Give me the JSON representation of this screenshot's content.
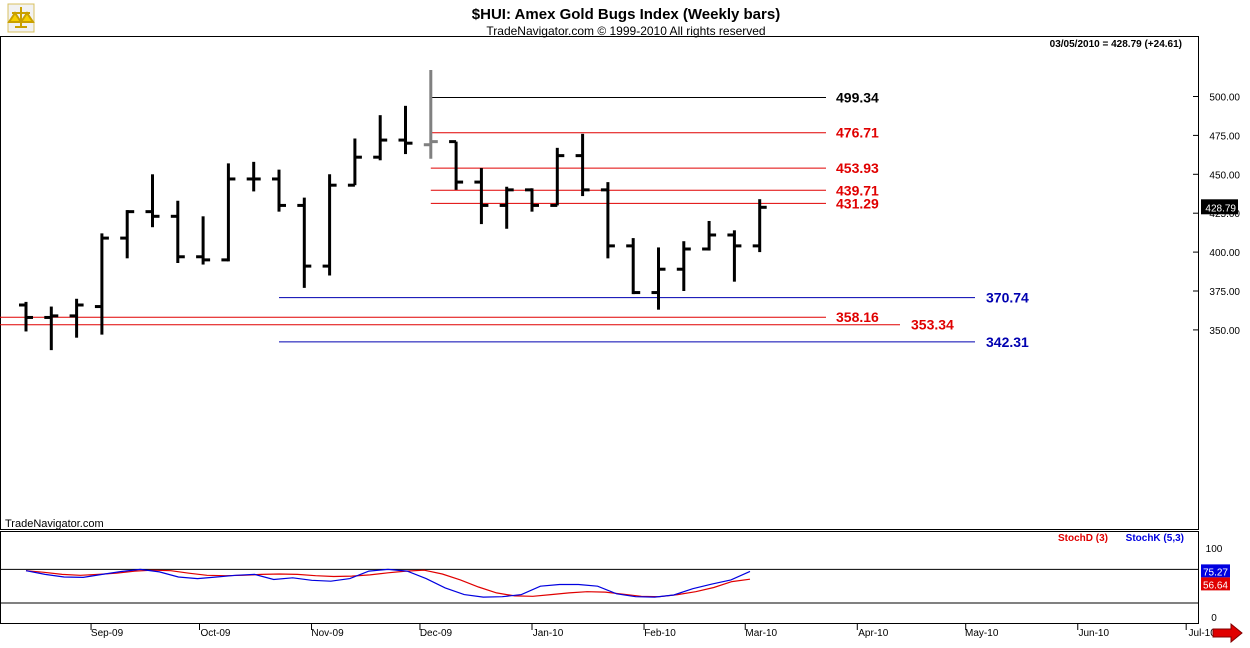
{
  "header": {
    "title": "$HUI:  Amex Gold Bugs Index  (Weekly bars)",
    "subtitle": "TradeNavigator.com © 1999-2010 All rights reserved",
    "last_quote": "03/05/2010 = 428.79 (+24.61)",
    "watermark": "TradeNavigator.com"
  },
  "colors": {
    "bars": "#000000",
    "current_bar": "#808080",
    "red_level": "#e00000",
    "blue_level": "#0000b0",
    "black_level": "#000000",
    "stoch_d": "#e00000",
    "stoch_k": "#0000e0"
  },
  "chart_data": [
    {
      "type": "ohlc",
      "title": "$HUI:  Amex Gold Bugs Index  (Weekly bars)",
      "ylim": [
        330,
        520
      ],
      "y_ticks": [
        "500.00",
        "475.00",
        "450.00",
        "425.00",
        "400.00",
        "375.00",
        "350.00"
      ],
      "x_ticks": [
        "Sep-09",
        "Oct-09",
        "Nov-09",
        "Dec-09",
        "Jan-10",
        "Feb-10",
        "Mar-10",
        "Apr-10",
        "May-10",
        "Jun-10",
        "Jul-10"
      ],
      "last_price_label": "428.79",
      "bars": [
        {
          "week": "2009-08-14",
          "open": 366,
          "high": 368,
          "low": 349,
          "close": 358
        },
        {
          "week": "2009-08-21",
          "open": 358,
          "high": 365,
          "low": 337,
          "close": 359
        },
        {
          "week": "2009-08-28",
          "open": 359,
          "high": 370,
          "low": 345,
          "close": 366
        },
        {
          "week": "2009-09-04",
          "open": 365,
          "high": 412,
          "low": 347,
          "close": 409
        },
        {
          "week": "2009-09-11",
          "open": 409,
          "high": 427,
          "low": 396,
          "close": 426
        },
        {
          "week": "2009-09-18",
          "open": 426,
          "high": 450,
          "low": 416,
          "close": 423
        },
        {
          "week": "2009-09-25",
          "open": 423,
          "high": 433,
          "low": 393,
          "close": 397
        },
        {
          "week": "2009-10-02",
          "open": 397,
          "high": 423,
          "low": 392,
          "close": 395
        },
        {
          "week": "2009-10-09",
          "open": 395,
          "high": 457,
          "low": 394,
          "close": 447
        },
        {
          "week": "2009-10-16",
          "open": 447,
          "high": 458,
          "low": 439,
          "close": 447
        },
        {
          "week": "2009-10-23",
          "open": 447,
          "high": 453,
          "low": 426,
          "close": 430
        },
        {
          "week": "2009-10-30",
          "open": 430,
          "high": 435,
          "low": 377,
          "close": 391
        },
        {
          "week": "2009-11-06",
          "open": 391,
          "high": 450,
          "low": 385,
          "close": 443
        },
        {
          "week": "2009-11-13",
          "open": 443,
          "high": 473,
          "low": 443,
          "close": 461
        },
        {
          "week": "2009-11-20",
          "open": 461,
          "high": 488,
          "low": 459,
          "close": 472
        },
        {
          "week": "2009-11-27",
          "open": 472,
          "high": 494,
          "low": 463,
          "close": 470
        },
        {
          "week": "2009-12-04",
          "open": 469,
          "high": 517,
          "low": 460,
          "close": 471,
          "current": true
        },
        {
          "week": "2009-12-11",
          "open": 471,
          "high": 471,
          "low": 440,
          "close": 445
        },
        {
          "week": "2009-12-18",
          "open": 445,
          "high": 454,
          "low": 418,
          "close": 430
        },
        {
          "week": "2009-12-25",
          "open": 430,
          "high": 442,
          "low": 415,
          "close": 440
        },
        {
          "week": "2010-01-01",
          "open": 440,
          "high": 441,
          "low": 426,
          "close": 430
        },
        {
          "week": "2010-01-08",
          "open": 430,
          "high": 467,
          "low": 430,
          "close": 462
        },
        {
          "week": "2010-01-15",
          "open": 462,
          "high": 476,
          "low": 436,
          "close": 440
        },
        {
          "week": "2010-01-22",
          "open": 440,
          "high": 445,
          "low": 396,
          "close": 404
        },
        {
          "week": "2010-01-29",
          "open": 404,
          "high": 409,
          "low": 373,
          "close": 374
        },
        {
          "week": "2010-02-05",
          "open": 374,
          "high": 403,
          "low": 363,
          "close": 389
        },
        {
          "week": "2010-02-12",
          "open": 389,
          "high": 407,
          "low": 375,
          "close": 402
        },
        {
          "week": "2010-02-19",
          "open": 402,
          "high": 420,
          "low": 401,
          "close": 411
        },
        {
          "week": "2010-02-26",
          "open": 411,
          "high": 414,
          "low": 381,
          "close": 404
        },
        {
          "week": "2010-03-05",
          "open": 404,
          "high": 434,
          "low": 400,
          "close": 428.79
        }
      ],
      "levels": [
        {
          "label": "499.34",
          "value": 499.34,
          "color": "black",
          "start_week": "2009-12-04"
        },
        {
          "label": "476.71",
          "value": 476.71,
          "color": "red",
          "start_week": "2009-12-04"
        },
        {
          "label": "453.93",
          "value": 453.93,
          "color": "red",
          "start_week": "2009-12-04"
        },
        {
          "label": "439.71",
          "value": 439.71,
          "color": "red",
          "start_week": "2009-12-04"
        },
        {
          "label": "431.29",
          "value": 431.29,
          "color": "red",
          "start_week": "2009-12-04"
        },
        {
          "label": "370.74",
          "value": 370.74,
          "color": "blue",
          "start_week": "2009-10-23"
        },
        {
          "label": "358.16",
          "value": 358.16,
          "color": "red",
          "start_week": "2009-08-14"
        },
        {
          "label": "353.34",
          "value": 353.34,
          "color": "red",
          "start_week": "2009-08-14"
        },
        {
          "label": "342.31",
          "value": 342.31,
          "color": "blue",
          "start_week": "2009-10-23"
        }
      ]
    },
    {
      "type": "line",
      "title": "",
      "ylim": [
        0,
        100
      ],
      "y_ticks": [
        "100",
        "0"
      ],
      "series": [
        {
          "name": "StochD (3)",
          "last_label": "56.64",
          "values": [
            77,
            73,
            68,
            66,
            68,
            71,
            76,
            78,
            77,
            71,
            66,
            65,
            66,
            68,
            69,
            68,
            65,
            63,
            64,
            67,
            72,
            76,
            78,
            69,
            55,
            38,
            24,
            17,
            16,
            20,
            24,
            27,
            26,
            21,
            16,
            15,
            20,
            27,
            37,
            51,
            56.64
          ]
        },
        {
          "name": "StochK (5,3)",
          "last_label": "75.27",
          "values": [
            77,
            68,
            62,
            61,
            68,
            75,
            80,
            74,
            62,
            58,
            62,
            66,
            68,
            56,
            60,
            54,
            52,
            58,
            76,
            80,
            76,
            58,
            36,
            20,
            14,
            15,
            20,
            40,
            44,
            44,
            40,
            22,
            15,
            14,
            19,
            34,
            45,
            55,
            75.27
          ]
        }
      ]
    }
  ]
}
